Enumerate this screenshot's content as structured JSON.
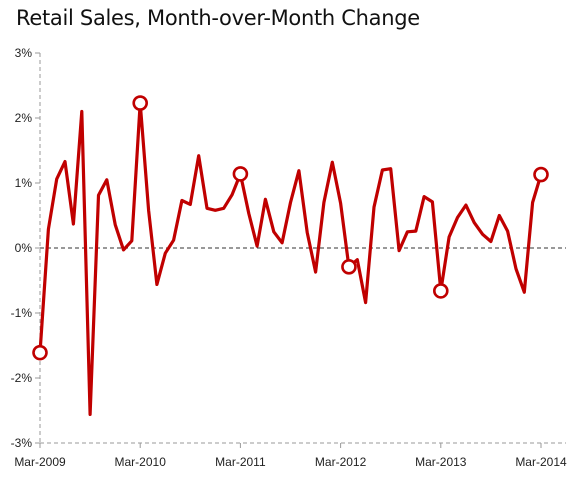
{
  "chart_data": {
    "type": "line",
    "title": "Retail Sales, Month-over-Month  Change",
    "xlabel": "",
    "ylabel": "",
    "ylim": [
      -3,
      3
    ],
    "y_ticks": [
      {
        "value": 3,
        "label": "3%"
      },
      {
        "value": 2,
        "label": "2%"
      },
      {
        "value": 1,
        "label": "1%"
      },
      {
        "value": 0,
        "label": "0%"
      },
      {
        "value": -1,
        "label": "-1%"
      },
      {
        "value": -2,
        "label": "-2%"
      },
      {
        "value": -3,
        "label": "-3%"
      }
    ],
    "x_ticks": [
      "Mar-2009",
      "Mar-2010",
      "Mar-2011",
      "Mar-2012",
      "Mar-2013",
      "Mar-2014"
    ],
    "grid": false,
    "zero_line": "dashed",
    "line_color": "#c00000",
    "series": [
      {
        "values": [
          -1.61,
          0.29,
          1.06,
          1.33,
          0.37,
          2.1,
          -2.56,
          0.81,
          1.05,
          0.36,
          -0.03,
          0.11,
          2.23,
          0.58,
          -0.56,
          -0.08,
          0.12,
          0.73,
          0.67,
          1.42,
          0.61,
          0.58,
          0.61,
          0.82,
          1.14,
          0.53,
          0.03,
          0.75,
          0.25,
          0.08,
          0.7,
          1.19,
          0.24,
          -0.37,
          0.7,
          1.32,
          0.69,
          -0.29,
          -0.18,
          -0.84,
          0.63,
          1.2,
          1.22,
          -0.04,
          0.25,
          0.26,
          0.79,
          0.71,
          -0.66,
          0.17,
          0.47,
          0.66,
          0.39,
          0.21,
          0.1,
          0.5,
          0.26,
          -0.32,
          -0.68,
          0.7,
          1.13
        ],
        "highlighted_indices": [
          0,
          12,
          24,
          37,
          48,
          60
        ]
      }
    ]
  }
}
